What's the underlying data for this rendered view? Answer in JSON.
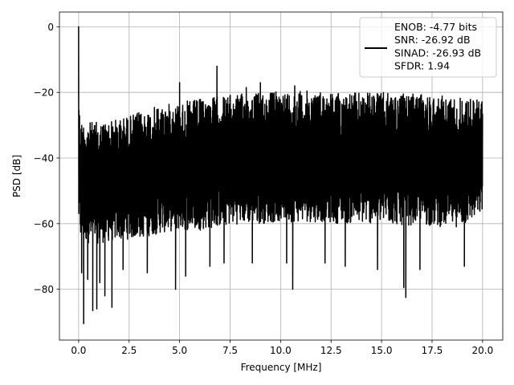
{
  "chart_data": {
    "type": "line",
    "title": "",
    "xlabel": "Frequency [MHz]",
    "ylabel": "PSD [dB]",
    "xlim": [
      -0.95,
      21.0
    ],
    "ylim": [
      -95.5,
      4.5
    ],
    "x_ticks": [
      0.0,
      2.5,
      5.0,
      7.5,
      10.0,
      12.5,
      15.0,
      17.5,
      20.0
    ],
    "x_tick_labels": [
      "0.0",
      "2.5",
      "5.0",
      "7.5",
      "10.0",
      "12.5",
      "15.0",
      "17.5",
      "20.0"
    ],
    "y_ticks": [
      0,
      -20,
      -40,
      -60,
      -80
    ],
    "y_tick_labels": [
      "0",
      "−20",
      "−40",
      "−60",
      "−80"
    ],
    "grid": true,
    "legend_position": "top-right",
    "series": [
      {
        "color": "#000000",
        "x_range": [
          0.0,
          20.0
        ],
        "upper_envelope": {
          "x": [
            0.0,
            0.05,
            0.1,
            0.3,
            0.5,
            1.0,
            2.0,
            3.0,
            4.0,
            5.0,
            6.0,
            7.0,
            8.0,
            9.0,
            10.0,
            11.0,
            12.0,
            13.0,
            14.0,
            15.0,
            16.0,
            17.0,
            18.0,
            19.0,
            20.0
          ],
          "y": [
            -10.0,
            -26.0,
            -28.5,
            -29.0,
            -29.0,
            -29.0,
            -28.0,
            -26.0,
            -24.0,
            -23.0,
            -22.0,
            -21.0,
            -20.5,
            -20.0,
            -19.5,
            -19.5,
            -19.5,
            -20.0,
            -20.0,
            -20.0,
            -20.5,
            -20.5,
            -21.0,
            -21.5,
            -22.0
          ]
        },
        "lower_envelope": {
          "x": [
            0.0,
            0.1,
            0.5,
            1.0,
            2.0,
            3.0,
            4.0,
            5.0,
            6.0,
            7.0,
            8.0,
            9.0,
            10.0,
            11.0,
            12.0,
            13.0,
            14.0,
            15.0,
            16.0,
            17.0,
            18.0,
            19.0,
            20.0
          ],
          "y": [
            -62.0,
            -65.0,
            -66.0,
            -66.0,
            -65.0,
            -64.5,
            -63.0,
            -62.0,
            -62.0,
            -61.0,
            -60.0,
            -60.0,
            -59.5,
            -59.5,
            -59.5,
            -60.0,
            -60.0,
            -60.0,
            -60.5,
            -60.5,
            -61.0,
            -61.0,
            -57.0
          ]
        },
        "peaks": [
          {
            "x": 0.0,
            "y": 0.0
          },
          {
            "x": 5.0,
            "y": -17.0
          },
          {
            "x": 6.85,
            "y": -12.0
          },
          {
            "x": 8.3,
            "y": -18.5
          },
          {
            "x": 9.0,
            "y": -17.0
          },
          {
            "x": 10.7,
            "y": -18.0
          }
        ],
        "dips": [
          {
            "x": 0.15,
            "y": -75.0
          },
          {
            "x": 0.25,
            "y": -90.5
          },
          {
            "x": 0.45,
            "y": -77.0
          },
          {
            "x": 0.7,
            "y": -86.5
          },
          {
            "x": 0.9,
            "y": -86.0
          },
          {
            "x": 1.05,
            "y": -78.0
          },
          {
            "x": 1.3,
            "y": -82.0
          },
          {
            "x": 1.65,
            "y": -85.5
          },
          {
            "x": 2.2,
            "y": -74.0
          },
          {
            "x": 3.4,
            "y": -75.0
          },
          {
            "x": 4.8,
            "y": -80.0
          },
          {
            "x": 5.3,
            "y": -76.0
          },
          {
            "x": 6.5,
            "y": -73.0
          },
          {
            "x": 7.2,
            "y": -72.0
          },
          {
            "x": 8.6,
            "y": -72.0
          },
          {
            "x": 10.3,
            "y": -72.0
          },
          {
            "x": 10.6,
            "y": -80.0
          },
          {
            "x": 12.2,
            "y": -72.0
          },
          {
            "x": 13.2,
            "y": -73.0
          },
          {
            "x": 14.8,
            "y": -74.0
          },
          {
            "x": 16.1,
            "y": -79.5
          },
          {
            "x": 16.2,
            "y": -82.5
          },
          {
            "x": 16.9,
            "y": -74.0
          },
          {
            "x": 19.1,
            "y": -73.0
          }
        ]
      }
    ],
    "legend": [
      "ENOB: -4.77 bits",
      "SNR: -26.92 dB",
      "SINAD: -26.93 dB",
      "SFDR: 1.94"
    ]
  }
}
